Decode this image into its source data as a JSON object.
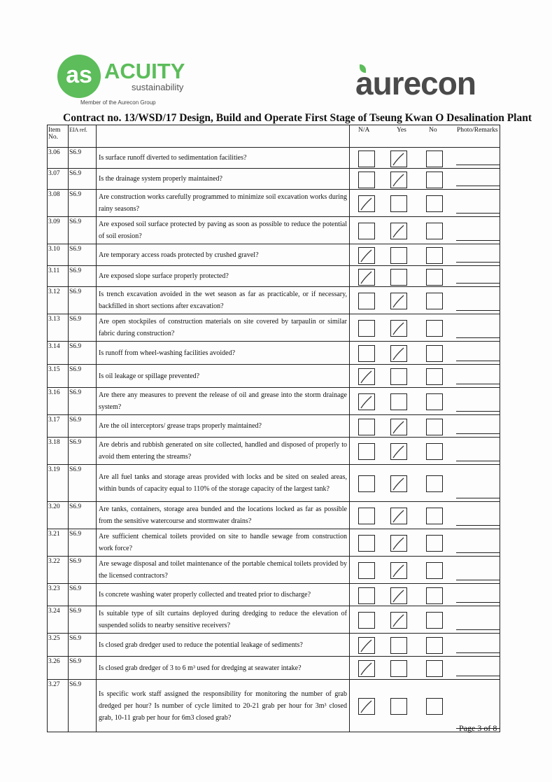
{
  "header": {
    "acuity_logo": "ACUITY",
    "acuity_sub": "sustainability",
    "acuity_member": "Member of the Aurecon Group",
    "aurecon_logo": "aurecon",
    "title": "Contract no.  13/WSD/17 Design, Build and Operate First Stage of Tseung Kwan O Desalination Plant"
  },
  "columns": {
    "item": "Item No.",
    "eia": "EIA ref.",
    "na": "N/A",
    "yes": "Yes",
    "no": "No",
    "remarks": "Photo/Remarks"
  },
  "rows": [
    {
      "item": "3.06",
      "eia": "S6.9",
      "q": "Is surface runoff diverted to sedimentation facilities?",
      "check": "yes"
    },
    {
      "item": "3.07",
      "eia": "S6.9",
      "q": "Is the drainage system properly maintained?",
      "check": "yes"
    },
    {
      "item": "3.08",
      "eia": "S6.9",
      "q": "Are construction works carefully programmed to minimize soil excavation works during rainy seasons?",
      "check": "na"
    },
    {
      "item": "3.09",
      "eia": "S6.9",
      "q": "Are exposed soil surface protected by paving as soon as possible to reduce the potential of soil erosion?",
      "check": "yes"
    },
    {
      "item": "3.10",
      "eia": "S6.9",
      "q": "Are temporary access roads protected by crushed gravel?",
      "check": "na"
    },
    {
      "item": "3.11",
      "eia": "S6.9",
      "q": "Are exposed slope surface properly protected?",
      "check": "na"
    },
    {
      "item": "3.12",
      "eia": "S6.9",
      "q": "Is trench excavation avoided in the wet season as far as practicable, or if necessary, backfilled in short sections after excavation?",
      "check": "yes"
    },
    {
      "item": "3.13",
      "eia": "S6.9",
      "q": "Are open stockpiles of construction materials on site covered by tarpaulin or similar fabric during construction?",
      "check": "yes"
    },
    {
      "item": "3.14",
      "eia": "S6.9",
      "q": "Is runoff from wheel-washing facilities avoided?",
      "check": "yes"
    },
    {
      "item": "3.15",
      "eia": "S6.9",
      "q": "Is oil leakage or spillage prevented?",
      "check": "na"
    },
    {
      "item": "3.16",
      "eia": "S6.9",
      "q": "Are there any measures to prevent the release of oil and grease into the storm drainage system?",
      "check": "na"
    },
    {
      "item": "3.17",
      "eia": "S6.9",
      "q": "Are the oil interceptors/ grease traps properly maintained?",
      "check": "yes"
    },
    {
      "item": "3.18",
      "eia": "S6.9",
      "q": "Are debris and rubbish generated on site collected, handled and disposed of properly to avoid them entering the streams?",
      "check": "yes"
    },
    {
      "item": "3.19",
      "eia": "S6.9",
      "q": "Are all fuel tanks and storage areas provided with locks and be sited on sealed areas, within bunds of capacity equal to 110% of the storage capacity of the largest tank?",
      "check": "yes"
    },
    {
      "item": "3.20",
      "eia": "S6.9",
      "q": "Are tanks, containers, storage area bunded and the locations locked as far as possible from the sensitive watercourse and stormwater drains?",
      "check": "yes"
    },
    {
      "item": "3.21",
      "eia": "S6.9",
      "q": "Are sufficient chemical toilets provided on site to handle sewage from construction work force?",
      "check": "yes"
    },
    {
      "item": "3.22",
      "eia": "S6.9",
      "q": "Are sewage disposal and toilet maintenance of the portable chemical toilets provided by the licensed contractors?",
      "check": "yes"
    },
    {
      "item": "3.23",
      "eia": "S6.9",
      "q": "Is concrete washing water properly collected and treated prior to discharge?",
      "check": "yes"
    },
    {
      "item": "3.24",
      "eia": "S6.9",
      "q": "Is suitable type of silt curtains deployed during dredging to reduce the elevation of suspended solids to nearby sensitive receivers?",
      "check": "yes"
    },
    {
      "item": "3.25",
      "eia": "S6.9",
      "q": "Is closed grab dredger used to reduce the potential leakage of sediments?",
      "check": "na"
    },
    {
      "item": "3.26",
      "eia": "S6.9",
      "q": "Is closed grab dredger of 3 to 6 m³ used for dredging at seawater intake?",
      "check": "na"
    },
    {
      "item": "3.27",
      "eia": "S6.9",
      "q": "Is specific work staff assigned the responsibility for monitoring the number of grab dredged per hour? Is number of cycle limited to 20-21 grab per hour for 3m³ closed grab, 10-11 grab per hour for 6m3 closed grab?",
      "check": "na"
    }
  ],
  "footer": {
    "page": "Page 3 of 8"
  }
}
